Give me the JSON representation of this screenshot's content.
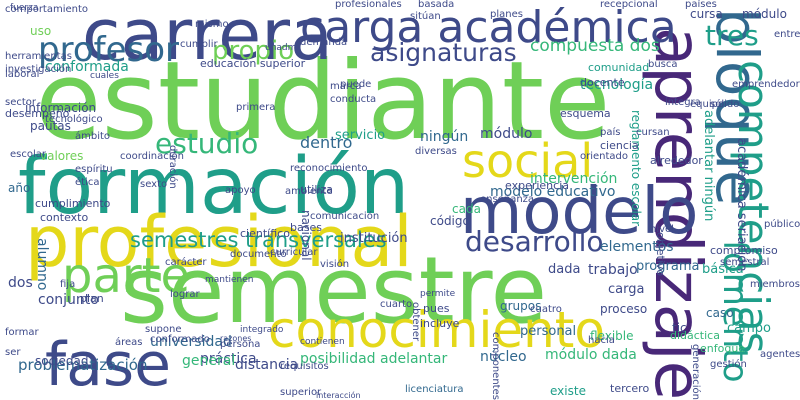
{
  "palette": {
    "yellow": "#e4d81a",
    "light_green": "#6fcf57",
    "green": "#35b779",
    "teal": "#1f9e89",
    "blue": "#31688e",
    "indigo": "#3e4a89",
    "purple": "#482878",
    "dark_purple": "#440154"
  },
  "words": [
    {
      "text": "estudiante",
      "color": "#6fcf57",
      "vertical": false
    },
    {
      "text": "formación",
      "color": "#1f9e89",
      "vertical": false
    },
    {
      "text": "semestre",
      "color": "#6fcf57",
      "vertical": false
    },
    {
      "text": "profesional",
      "color": "#e4d81a",
      "vertical": false
    },
    {
      "text": "carrera",
      "color": "#3e4a89",
      "vertical": false
    },
    {
      "text": "aprendizaje",
      "color": "#482878",
      "vertical": true
    },
    {
      "text": "conocimiento",
      "color": "#e4d81a",
      "vertical": false
    },
    {
      "text": "modelo",
      "color": "#3e4a89",
      "vertical": false
    },
    {
      "text": "fase",
      "color": "#3e4a89",
      "vertical": false
    },
    {
      "text": "carga académica",
      "color": "#3e4a89",
      "vertical": false
    },
    {
      "text": "social",
      "color": "#e4d81a",
      "vertical": false
    },
    {
      "text": "bloque",
      "color": "#31688e",
      "vertical": true
    },
    {
      "text": "competencias",
      "color": "#1f9e89",
      "vertical": true
    },
    {
      "text": "parte",
      "color": "#6fcf57",
      "vertical": false
    },
    {
      "text": "desarrollo",
      "color": "#3e4a89",
      "vertical": false
    },
    {
      "text": "profesor",
      "color": "#31688e",
      "vertical": false
    },
    {
      "text": "estudio",
      "color": "#35b779",
      "vertical": false
    },
    {
      "text": "propio",
      "color": "#6fcf57",
      "vertical": false
    },
    {
      "text": "asignaturas",
      "color": "#3e4a89",
      "vertical": false
    },
    {
      "text": "semestres transversales",
      "color": "#1f9e89",
      "vertical": false
    },
    {
      "text": "tres",
      "color": "#1f9e89",
      "vertical": false
    },
    {
      "text": "fomento",
      "color": "#1f9e89",
      "vertical": true
    },
    {
      "text": "compuesta dos",
      "color": "#35b779",
      "vertical": false
    },
    {
      "text": "modelo educativo",
      "color": "#31688e",
      "vertical": false
    },
    {
      "text": "intervención",
      "color": "#35b779",
      "vertical": false
    },
    {
      "text": "módulo",
      "color": "#3e4a89",
      "vertical": false
    },
    {
      "text": "dentro",
      "color": "#31688e",
      "vertical": false
    },
    {
      "text": "ningún",
      "color": "#31688e",
      "vertical": false
    },
    {
      "text": "servicio",
      "color": "#1f9e89",
      "vertical": false
    },
    {
      "text": "tecnología",
      "color": "#1f9e89",
      "vertical": false
    },
    {
      "text": "conformada",
      "color": "#1f9e89",
      "vertical": false
    },
    {
      "text": "educación superior",
      "color": "#3e4a89",
      "vertical": false
    },
    {
      "text": "institución",
      "color": "#3e4a89",
      "vertical": false
    },
    {
      "text": "posibilidad adelantar",
      "color": "#35b779",
      "vertical": false
    },
    {
      "text": "módulo dada",
      "color": "#35b779",
      "vertical": false
    },
    {
      "text": "núcleo",
      "color": "#31688e",
      "vertical": false
    },
    {
      "text": "universidad",
      "color": "#31688e",
      "vertical": false
    },
    {
      "text": "práctica",
      "color": "#3e4a89",
      "vertical": false
    },
    {
      "text": "general",
      "color": "#35b779",
      "vertical": false
    },
    {
      "text": "distancia",
      "color": "#3e4a89",
      "vertical": false
    },
    {
      "text": "problematización",
      "color": "#31688e",
      "vertical": false
    },
    {
      "text": "alumno",
      "color": "#31688e",
      "vertical": true
    },
    {
      "text": "conjunto",
      "color": "#3e4a89",
      "vertical": false
    },
    {
      "text": "dos",
      "color": "#3e4a89",
      "vertical": false
    },
    {
      "text": "trabajo",
      "color": "#3e4a89",
      "vertical": false
    },
    {
      "text": "dada",
      "color": "#3e4a89",
      "vertical": false
    },
    {
      "text": "carga",
      "color": "#3e4a89",
      "vertical": false
    },
    {
      "text": "elementos",
      "color": "#31688e",
      "vertical": false
    },
    {
      "text": "programa",
      "color": "#31688e",
      "vertical": false
    },
    {
      "text": "básica",
      "color": "#1f9e89",
      "vertical": false
    },
    {
      "text": "proceso",
      "color": "#3e4a89",
      "vertical": false
    },
    {
      "text": "caso",
      "color": "#31688e",
      "vertical": false
    },
    {
      "text": "campo",
      "color": "#1f9e89",
      "vertical": false
    },
    {
      "text": "tic",
      "color": "#3e4a89",
      "vertical": false
    },
    {
      "text": "flexible",
      "color": "#35b779",
      "vertical": false
    },
    {
      "text": "personal",
      "color": "#31688e",
      "vertical": false
    },
    {
      "text": "académica seriación",
      "color": "#3e4a89",
      "vertical": true
    },
    {
      "text": "objetivo",
      "color": "#3e4a89",
      "vertical": true
    },
    {
      "text": "adelantar ningún",
      "color": "#1f9e89",
      "vertical": true
    },
    {
      "text": "reglamento escolar",
      "color": "#1f9e89",
      "vertical": true
    },
    {
      "text": "cursa",
      "color": "#3e4a89",
      "vertical": false
    },
    {
      "text": "módulo",
      "color": "#3e4a89",
      "vertical": false
    },
    {
      "text": "uso",
      "color": "#6fcf57",
      "vertical": false
    },
    {
      "text": "año",
      "color": "#31688e",
      "vertical": false
    },
    {
      "text": "cada",
      "color": "#35b779",
      "vertical": false
    },
    {
      "text": "grupos",
      "color": "#31688e",
      "vertical": false
    },
    {
      "text": "pues",
      "color": "#3e4a89",
      "vertical": false
    },
    {
      "text": "código",
      "color": "#3e4a89",
      "vertical": false
    },
    {
      "text": "hacia",
      "color": "#3e4a89",
      "vertical": false
    },
    {
      "text": "existe",
      "color": "#1f9e89",
      "vertical": false
    },
    {
      "text": "incluye",
      "color": "#3e4a89",
      "vertical": false
    },
    {
      "text": "licenciatura",
      "color": "#31688e",
      "vertical": false
    },
    {
      "text": "información",
      "color": "#3e4a89",
      "vertical": false
    },
    {
      "text": "sociedad",
      "color": "#3e4a89",
      "vertical": false
    },
    {
      "text": "valores",
      "color": "#6fcf57",
      "vertical": false
    },
    {
      "text": "pautas",
      "color": "#3e4a89",
      "vertical": false
    },
    {
      "text": "cumplimiento",
      "color": "#3e4a89",
      "vertical": false
    },
    {
      "text": "contexto",
      "color": "#3e4a89",
      "vertical": false
    },
    {
      "text": "experiencia",
      "color": "#3e4a89",
      "vertical": false
    },
    {
      "text": "enseñanza",
      "color": "#3e4a89",
      "vertical": false
    },
    {
      "text": "comunicación",
      "color": "#3e4a89",
      "vertical": false
    },
    {
      "text": "ambiente",
      "color": "#3e4a89",
      "vertical": false
    },
    {
      "text": "científico",
      "color": "#3e4a89",
      "vertical": false
    },
    {
      "text": "nacional",
      "color": "#3e4a89",
      "vertical": true
    },
    {
      "text": "comunidad",
      "color": "#1f9e89",
      "vertical": false
    },
    {
      "text": "docente",
      "color": "#3e4a89",
      "vertical": false
    },
    {
      "text": "integra",
      "color": "#3e4a89",
      "vertical": false
    },
    {
      "text": "esquema",
      "color": "#3e4a89",
      "vertical": false
    },
    {
      "text": "país",
      "color": "#3e4a89",
      "vertical": false
    },
    {
      "text": "compromiso",
      "color": "#3e4a89",
      "vertical": false
    },
    {
      "text": "semestral",
      "color": "#3e4a89",
      "vertical": false
    },
    {
      "text": "nivel",
      "color": "#3e4a89",
      "vertical": false
    },
    {
      "text": "didáctica",
      "color": "#35b779",
      "vertical": false
    },
    {
      "text": "enfoque",
      "color": "#35b779",
      "vertical": false
    },
    {
      "text": "alrededor",
      "color": "#3e4a89",
      "vertical": false
    },
    {
      "text": "utiliza",
      "color": "#3e4a89",
      "vertical": false
    },
    {
      "text": "marca",
      "color": "#3e4a89",
      "vertical": false
    },
    {
      "text": "conducta",
      "color": "#3e4a89",
      "vertical": false
    },
    {
      "text": "diversas",
      "color": "#3e4a89",
      "vertical": false
    },
    {
      "text": "comportamiento",
      "color": "#3e4a89",
      "vertical": false
    },
    {
      "text": "herramientas",
      "color": "#3e4a89",
      "vertical": false
    },
    {
      "text": "investigación",
      "color": "#3e4a89",
      "vertical": false
    },
    {
      "text": "cuales",
      "color": "#3e4a89",
      "vertical": false
    },
    {
      "text": "profesionales",
      "color": "#3e4a89",
      "vertical": false
    },
    {
      "text": "basada",
      "color": "#3e4a89",
      "vertical": false
    },
    {
      "text": "planes",
      "color": "#3e4a89",
      "vertical": false
    },
    {
      "text": "recepcional",
      "color": "#3e4a89",
      "vertical": false
    },
    {
      "text": "países",
      "color": "#3e4a89",
      "vertical": false
    },
    {
      "text": "cumplir",
      "color": "#3e4a89",
      "vertical": false
    },
    {
      "text": "demanda",
      "color": "#3e4a89",
      "vertical": false
    },
    {
      "text": "equipo",
      "color": "#3e4a89",
      "vertical": false
    },
    {
      "text": "tercero",
      "color": "#3e4a89",
      "vertical": false
    },
    {
      "text": "persona",
      "color": "#3e4a89",
      "vertical": false
    },
    {
      "text": "cuarto",
      "color": "#3e4a89",
      "vertical": false
    },
    {
      "text": "documento",
      "color": "#3e4a89",
      "vertical": false
    },
    {
      "text": "cursan",
      "color": "#3e4a89",
      "vertical": false
    },
    {
      "text": "ciencia",
      "color": "#3e4a89",
      "vertical": false
    },
    {
      "text": "busca",
      "color": "#3e4a89",
      "vertical": false
    },
    {
      "text": "gestión",
      "color": "#3e4a89",
      "vertical": false
    },
    {
      "text": "requisitos",
      "color": "#3e4a89",
      "vertical": false
    },
    {
      "text": "interacción",
      "color": "#3e4a89",
      "vertical": false
    },
    {
      "text": "superior",
      "color": "#3e4a89",
      "vertical": false
    },
    {
      "text": "formar",
      "color": "#3e4a89",
      "vertical": false
    },
    {
      "text": "ser",
      "color": "#3e4a89",
      "vertical": false
    },
    {
      "text": "plan",
      "color": "#3e4a89",
      "vertical": false
    },
    {
      "text": "lograr",
      "color": "#3e4a89",
      "vertical": false
    },
    {
      "text": "integrado",
      "color": "#3e4a89",
      "vertical": false
    },
    {
      "text": "mantienen",
      "color": "#3e4a89",
      "vertical": false
    },
    {
      "text": "carácter",
      "color": "#3e4a89",
      "vertical": false
    },
    {
      "text": "sexto",
      "color": "#3e4a89",
      "vertical": false
    },
    {
      "text": "áreas",
      "color": "#3e4a89",
      "vertical": false
    },
    {
      "text": "tecnológico",
      "color": "#3e4a89",
      "vertical": false
    },
    {
      "text": "desempeño",
      "color": "#3e4a89",
      "vertical": false
    },
    {
      "text": "sector",
      "color": "#3e4a89",
      "vertical": false
    },
    {
      "text": "sitúan",
      "color": "#3e4a89",
      "vertical": false
    },
    {
      "text": "conformado",
      "color": "#3e4a89",
      "vertical": false
    },
    {
      "text": "mismo",
      "color": "#3e4a89",
      "vertical": false
    },
    {
      "text": "duración",
      "color": "#3e4a89",
      "vertical": true
    },
    {
      "text": "primera",
      "color": "#3e4a89",
      "vertical": false
    },
    {
      "text": "reconocimiento",
      "color": "#3e4a89",
      "vertical": false
    },
    {
      "text": "apoyo",
      "color": "#3e4a89",
      "vertical": false
    },
    {
      "text": "bases",
      "color": "#3e4a89",
      "vertical": false
    },
    {
      "text": "visión",
      "color": "#3e4a89",
      "vertical": false
    },
    {
      "text": "permite",
      "color": "#3e4a89",
      "vertical": false
    },
    {
      "text": "cuatro",
      "color": "#3e4a89",
      "vertical": false
    },
    {
      "text": "componentes",
      "color": "#3e4a89",
      "vertical": true
    },
    {
      "text": "laboral",
      "color": "#3e4a89",
      "vertical": false
    },
    {
      "text": "ámbito",
      "color": "#3e4a89",
      "vertical": false
    },
    {
      "text": "espíritu",
      "color": "#3e4a89",
      "vertical": false
    },
    {
      "text": "ética",
      "color": "#3e4a89",
      "vertical": false
    },
    {
      "text": "fija",
      "color": "#3e4a89",
      "vertical": false
    },
    {
      "text": "supone",
      "color": "#3e4a89",
      "vertical": false
    },
    {
      "text": "puede",
      "color": "#3e4a89",
      "vertical": false
    },
    {
      "text": "razones",
      "color": "#3e4a89",
      "vertical": false
    },
    {
      "text": "contienen",
      "color": "#3e4a89",
      "vertical": false
    },
    {
      "text": "obtener",
      "color": "#3e4a89",
      "vertical": true
    },
    {
      "text": "entre",
      "color": "#3e4a89",
      "vertical": false
    },
    {
      "text": "coordinación",
      "color": "#3e4a89",
      "vertical": false
    },
    {
      "text": "generación",
      "color": "#3e4a89",
      "vertical": true
    },
    {
      "text": "curricular",
      "color": "#3e4a89",
      "vertical": false
    },
    {
      "text": "orientado",
      "color": "#3e4a89",
      "vertical": false
    },
    {
      "text": "unadm",
      "color": "#3e4a89",
      "vertical": false
    },
    {
      "text": "escolar",
      "color": "#3e4a89",
      "vertical": false
    },
    {
      "text": "agentes",
      "color": "#3e4a89",
      "vertical": false
    },
    {
      "text": "emprendedor",
      "color": "#3e4a89",
      "vertical": false
    },
    {
      "text": "sólido",
      "color": "#3e4a89",
      "vertical": false
    },
    {
      "text": "público",
      "color": "#3e4a89",
      "vertical": false
    },
    {
      "text": "miembros",
      "color": "#3e4a89",
      "vertical": false
    },
    {
      "text": "fuerza",
      "color": "#3e4a89",
      "vertical": false
    }
  ]
}
